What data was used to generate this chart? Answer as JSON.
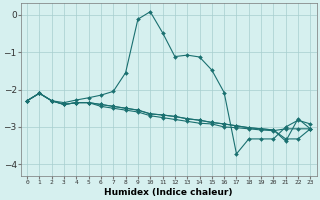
{
  "xlabel": "Humidex (Indice chaleur)",
  "background_color": "#d6f0ef",
  "grid_color": "#a8cece",
  "line_color": "#1a7070",
  "xlim": [
    -0.5,
    23.5
  ],
  "ylim": [
    -4.3,
    0.3
  ],
  "yticks": [
    0,
    -1,
    -2,
    -3,
    -4
  ],
  "xticks": [
    0,
    1,
    2,
    3,
    4,
    5,
    6,
    7,
    8,
    9,
    10,
    11,
    12,
    13,
    14,
    15,
    16,
    17,
    18,
    19,
    20,
    21,
    22,
    23
  ],
  "series": [
    {
      "x": [
        0,
        1,
        2,
        3,
        4,
        5,
        6,
        7,
        8,
        9,
        10,
        11,
        12,
        13,
        14,
        15,
        16,
        17,
        18,
        19,
        20,
        21,
        22,
        23
      ],
      "y": [
        -2.3,
        -2.1,
        -2.3,
        -2.4,
        -2.35,
        -2.35,
        -2.45,
        -2.5,
        -2.55,
        -2.6,
        -2.7,
        -2.75,
        -2.8,
        -2.85,
        -2.9,
        -2.92,
        -3.0,
        -3.02,
        -3.05,
        -3.08,
        -3.1,
        -3.05,
        -3.05,
        -3.05
      ]
    },
    {
      "x": [
        0,
        1,
        2,
        3,
        4,
        5,
        6,
        7,
        8,
        9,
        10,
        11,
        12,
        13,
        14,
        15,
        16,
        17,
        18,
        19,
        20,
        21,
        22,
        23
      ],
      "y": [
        -2.3,
        -2.1,
        -2.3,
        -2.35,
        -2.28,
        -2.22,
        -2.15,
        -2.05,
        -1.55,
        -0.12,
        0.08,
        -0.48,
        -1.12,
        -1.08,
        -1.13,
        -1.48,
        -2.08,
        -3.72,
        -3.32,
        -3.32,
        -3.32,
        -3.0,
        -2.82,
        -2.92
      ]
    },
    {
      "x": [
        0,
        1,
        2,
        3,
        4,
        5,
        6,
        7,
        8,
        9,
        10,
        11,
        12,
        13,
        14,
        15,
        16,
        17,
        18,
        19,
        20,
        21,
        22,
        23
      ],
      "y": [
        -2.3,
        -2.1,
        -2.3,
        -2.4,
        -2.35,
        -2.35,
        -2.4,
        -2.45,
        -2.5,
        -2.55,
        -2.65,
        -2.68,
        -2.72,
        -2.78,
        -2.82,
        -2.88,
        -2.92,
        -2.97,
        -3.02,
        -3.05,
        -3.08,
        -3.32,
        -3.32,
        -3.05
      ]
    },
    {
      "x": [
        0,
        1,
        2,
        3,
        4,
        5,
        6,
        7,
        8,
        9,
        10,
        11,
        12,
        13,
        14,
        15,
        16,
        17,
        18,
        19,
        20,
        21,
        22,
        23
      ],
      "y": [
        -2.3,
        -2.1,
        -2.3,
        -2.4,
        -2.35,
        -2.35,
        -2.4,
        -2.45,
        -2.5,
        -2.55,
        -2.65,
        -2.68,
        -2.72,
        -2.78,
        -2.82,
        -2.88,
        -2.92,
        -2.97,
        -3.02,
        -3.05,
        -3.08,
        -3.38,
        -2.78,
        -3.05
      ]
    }
  ]
}
